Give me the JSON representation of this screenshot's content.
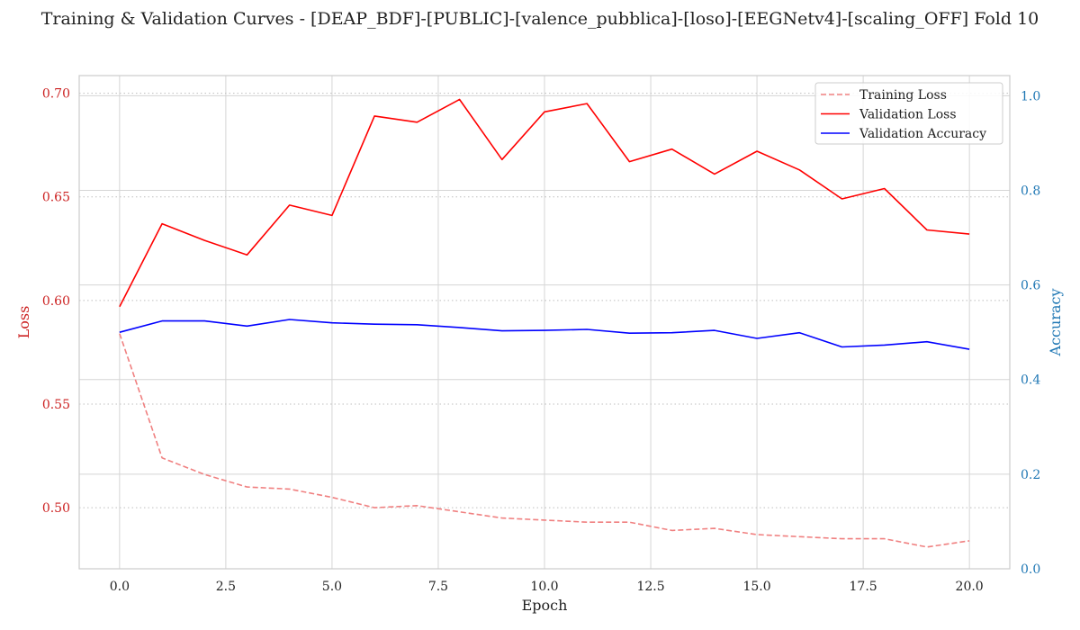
{
  "chart_data": {
    "type": "line",
    "title": "Training & Validation Curves - [DEAP_BDF]-[PUBLIC]-[valence_pubblica]-[loso]-[EEGNetv4]-[scaling_OFF] Fold 10",
    "xlabel": "Epoch",
    "ylabel_left": "Loss",
    "ylabel_right": "Accuracy",
    "xlim": [
      -0.95,
      20.95
    ],
    "ylim_left": [
      0.4705,
      0.7085
    ],
    "ylim_right": [
      0.0,
      1.0425
    ],
    "x_ticks": [
      0.0,
      2.5,
      5.0,
      7.5,
      10.0,
      12.5,
      15.0,
      17.5,
      20.0
    ],
    "x_tick_labels": [
      "0.0",
      "2.5",
      "5.0",
      "7.5",
      "10.0",
      "12.5",
      "15.0",
      "17.5",
      "20.0"
    ],
    "y_left_ticks": [
      0.5,
      0.55,
      0.6,
      0.65,
      0.7
    ],
    "y_left_tick_labels": [
      "0.50",
      "0.55",
      "0.60",
      "0.65",
      "0.70"
    ],
    "y_right_ticks": [
      0.0,
      0.2,
      0.4,
      0.6,
      0.8,
      1.0
    ],
    "y_right_tick_labels": [
      "0.0",
      "0.2",
      "0.4",
      "0.6",
      "0.8",
      "1.0"
    ],
    "grid": true,
    "legend_position": "top-right",
    "x": [
      0,
      1,
      2,
      3,
      4,
      5,
      6,
      7,
      8,
      9,
      10,
      11,
      12,
      13,
      14,
      15,
      16,
      17,
      18,
      19,
      20
    ],
    "series": [
      {
        "name": "Training Loss",
        "axis": "left",
        "style": "dashed",
        "color": "#f08080",
        "values": [
          0.584,
          0.524,
          0.516,
          0.51,
          0.509,
          0.505,
          0.5,
          0.501,
          0.498,
          0.495,
          0.494,
          0.493,
          0.493,
          0.489,
          0.49,
          0.487,
          0.486,
          0.485,
          0.485,
          0.481,
          0.484
        ]
      },
      {
        "name": "Validation Loss",
        "axis": "left",
        "style": "solid",
        "color": "#ff0000",
        "values": [
          0.597,
          0.637,
          0.629,
          0.622,
          0.646,
          0.641,
          0.689,
          0.686,
          0.697,
          0.668,
          0.691,
          0.695,
          0.667,
          0.673,
          0.661,
          0.672,
          0.663,
          0.649,
          0.654,
          0.634,
          0.632
        ]
      },
      {
        "name": "Validation Accuracy",
        "axis": "right",
        "style": "solid",
        "color": "#0000ff",
        "values": [
          0.5,
          0.524,
          0.524,
          0.513,
          0.527,
          0.52,
          0.517,
          0.516,
          0.51,
          0.503,
          0.504,
          0.506,
          0.498,
          0.499,
          0.504,
          0.487,
          0.499,
          0.469,
          0.473,
          0.48,
          0.464
        ]
      }
    ]
  }
}
